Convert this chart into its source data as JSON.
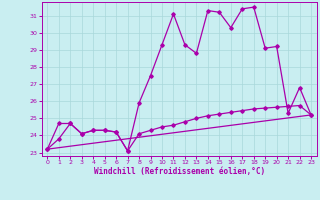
{
  "xlabel": "Windchill (Refroidissement éolien,°C)",
  "xlim": [
    -0.5,
    23.5
  ],
  "ylim": [
    22.8,
    31.8
  ],
  "yticks": [
    23,
    24,
    25,
    26,
    27,
    28,
    29,
    30,
    31
  ],
  "xticks": [
    0,
    1,
    2,
    3,
    4,
    5,
    6,
    7,
    8,
    9,
    10,
    11,
    12,
    13,
    14,
    15,
    16,
    17,
    18,
    19,
    20,
    21,
    22,
    23
  ],
  "background_color": "#c9eef1",
  "grid_color": "#a8d8db",
  "line_color": "#aa00aa",
  "line1_x": [
    0,
    1,
    2,
    3,
    4,
    5,
    6,
    7,
    8,
    9,
    10,
    11,
    12,
    13,
    14,
    15,
    16,
    17,
    18,
    19,
    20,
    21,
    22,
    23
  ],
  "line1_y": [
    23.2,
    23.8,
    24.7,
    24.1,
    24.3,
    24.3,
    24.2,
    23.1,
    25.9,
    27.5,
    29.3,
    31.1,
    29.3,
    28.8,
    31.3,
    31.2,
    30.3,
    31.4,
    31.5,
    29.1,
    29.2,
    25.3,
    26.8,
    25.2
  ],
  "line2_x": [
    0,
    1,
    2,
    3,
    4,
    5,
    6,
    7,
    8,
    9,
    10,
    11,
    12,
    13,
    14,
    15,
    16,
    17,
    18,
    19,
    20,
    21,
    22,
    23
  ],
  "line2_y": [
    23.2,
    24.7,
    24.7,
    24.1,
    24.3,
    24.3,
    24.2,
    23.1,
    24.1,
    24.3,
    24.5,
    24.6,
    24.8,
    25.0,
    25.15,
    25.25,
    25.35,
    25.45,
    25.55,
    25.6,
    25.65,
    25.7,
    25.75,
    25.2
  ],
  "line3_x": [
    0,
    23
  ],
  "line3_y": [
    23.2,
    25.2
  ]
}
